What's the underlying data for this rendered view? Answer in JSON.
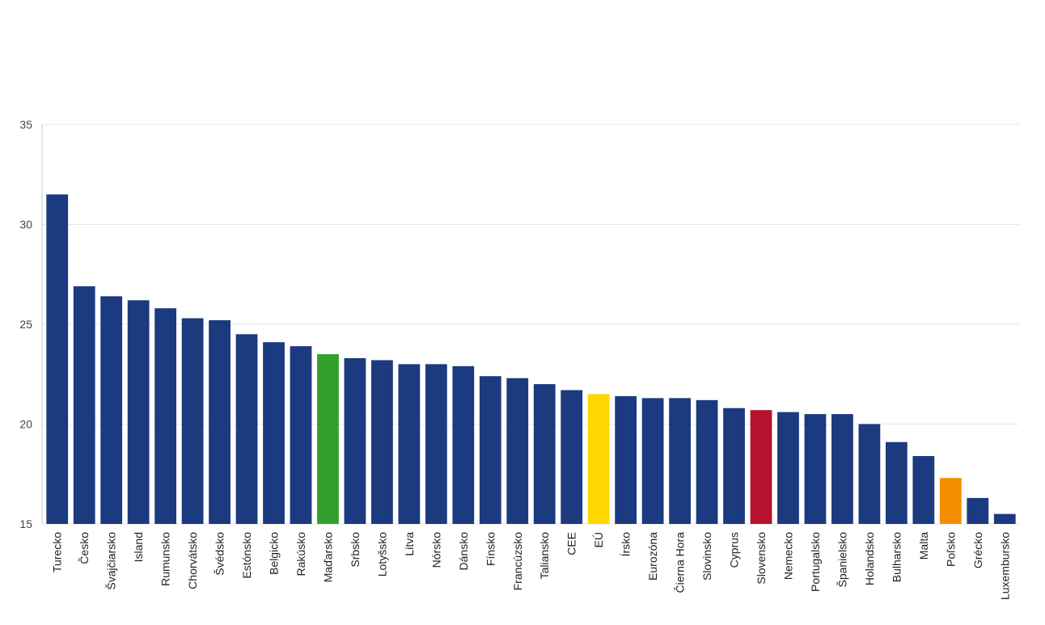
{
  "chart_data": {
    "type": "bar",
    "title": "",
    "xlabel": "",
    "ylabel": "",
    "ylim": [
      15,
      35
    ],
    "yticks": [
      15,
      20,
      25,
      30,
      35
    ],
    "grid": true,
    "legend": "none",
    "colors": {
      "default": "#1b3a7f",
      "highlight_madarsko": "#33a02c",
      "highlight_eu": "#ffd700",
      "highlight_slovensko": "#b5122f",
      "highlight_polsko": "#f28e00"
    },
    "categories": [
      "Turecko",
      "Česko",
      "Švajčiarsko",
      "Island",
      "Rumunsko",
      "Chorvátsko",
      "Švédsko",
      "Estónsko",
      "Belgicko",
      "Rakúsko",
      "Maďarsko",
      "Srbsko",
      "Lotyšsko",
      "Litva",
      "Nórsko",
      "Dánsko",
      "Fínsko",
      "Francúzsko",
      "Taliansko",
      "CEE",
      "EÚ",
      "Írsko",
      "Eurozóna",
      "Čierna Hora",
      "Slovinsko",
      "Cyprus",
      "Slovensko",
      "Nemecko",
      "Portugalsko",
      "Španielsko",
      "Holandsko",
      "Bulharsko",
      "Malta",
      "Poľsko",
      "Grécko",
      "Luxembursko"
    ],
    "values": [
      31.5,
      26.9,
      26.4,
      26.2,
      25.8,
      25.3,
      25.2,
      24.5,
      24.1,
      23.9,
      23.5,
      23.3,
      23.2,
      23.0,
      23.0,
      22.9,
      22.4,
      22.3,
      22.0,
      21.7,
      21.5,
      21.4,
      21.3,
      21.3,
      21.2,
      20.8,
      20.7,
      20.6,
      20.5,
      20.5,
      20.0,
      19.1,
      18.4,
      17.3,
      16.3,
      15.5
    ],
    "bar_colors": [
      "#1b3a7f",
      "#1b3a7f",
      "#1b3a7f",
      "#1b3a7f",
      "#1b3a7f",
      "#1b3a7f",
      "#1b3a7f",
      "#1b3a7f",
      "#1b3a7f",
      "#1b3a7f",
      "#33a02c",
      "#1b3a7f",
      "#1b3a7f",
      "#1b3a7f",
      "#1b3a7f",
      "#1b3a7f",
      "#1b3a7f",
      "#1b3a7f",
      "#1b3a7f",
      "#1b3a7f",
      "#ffd700",
      "#1b3a7f",
      "#1b3a7f",
      "#1b3a7f",
      "#1b3a7f",
      "#1b3a7f",
      "#b5122f",
      "#1b3a7f",
      "#1b3a7f",
      "#1b3a7f",
      "#1b3a7f",
      "#1b3a7f",
      "#1b3a7f",
      "#f28e00",
      "#1b3a7f",
      "#1b3a7f"
    ]
  }
}
